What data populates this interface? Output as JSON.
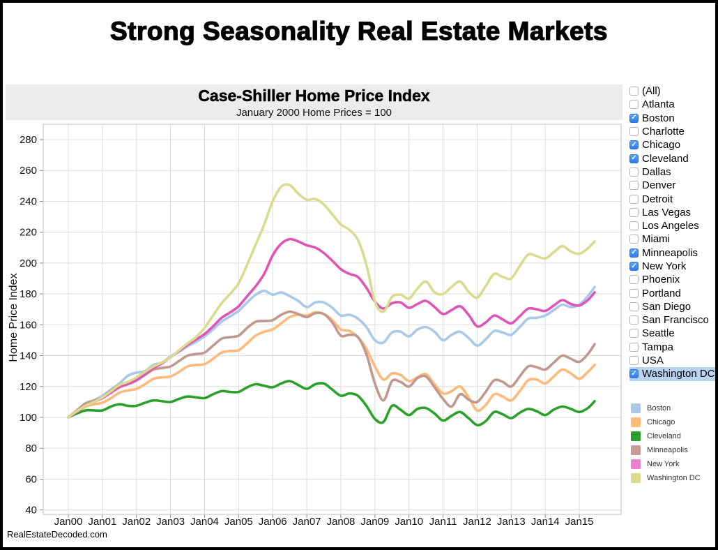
{
  "page": {
    "title": "Strong Seasonality Real Estate Markets",
    "footer": "RealEstateDecoded.com"
  },
  "chart_header": {
    "title": "Case-Shiller Home Price Index",
    "subtitle": "January 2000 Home Prices = 100"
  },
  "filter_list": {
    "items": [
      {
        "label": "(All)",
        "checked": false,
        "highlighted": false
      },
      {
        "label": "Atlanta",
        "checked": false,
        "highlighted": false
      },
      {
        "label": "Boston",
        "checked": true,
        "highlighted": false
      },
      {
        "label": "Charlotte",
        "checked": false,
        "highlighted": false
      },
      {
        "label": "Chicago",
        "checked": true,
        "highlighted": false
      },
      {
        "label": "Cleveland",
        "checked": true,
        "highlighted": false
      },
      {
        "label": "Dallas",
        "checked": false,
        "highlighted": false
      },
      {
        "label": "Denver",
        "checked": false,
        "highlighted": false
      },
      {
        "label": "Detroit",
        "checked": false,
        "highlighted": false
      },
      {
        "label": "Las Vegas",
        "checked": false,
        "highlighted": false
      },
      {
        "label": "Los Angeles",
        "checked": false,
        "highlighted": false
      },
      {
        "label": "Miami",
        "checked": false,
        "highlighted": false
      },
      {
        "label": "Minneapolis",
        "checked": true,
        "highlighted": false
      },
      {
        "label": "New York",
        "checked": true,
        "highlighted": false
      },
      {
        "label": "Phoenix",
        "checked": false,
        "highlighted": false
      },
      {
        "label": "Portland",
        "checked": false,
        "highlighted": false
      },
      {
        "label": "San Diego",
        "checked": false,
        "highlighted": false
      },
      {
        "label": "San Francisco",
        "checked": false,
        "highlighted": false
      },
      {
        "label": "Seattle",
        "checked": false,
        "highlighted": false
      },
      {
        "label": "Tampa",
        "checked": false,
        "highlighted": false
      },
      {
        "label": "USA",
        "checked": false,
        "highlighted": false
      },
      {
        "label": "Washington DC",
        "checked": true,
        "highlighted": true
      }
    ]
  },
  "legend": {
    "entries": [
      {
        "label": "Boston",
        "color": "#aec7e8"
      },
      {
        "label": "Chicago",
        "color": "#ffbb78"
      },
      {
        "label": "Cleveland",
        "color": "#2ca02c"
      },
      {
        "label": "Minneapolis",
        "color": "#c49c94"
      },
      {
        "label": "New York",
        "color": "#e882cf"
      },
      {
        "label": "Washington DC",
        "color": "#dbdb8d"
      }
    ]
  },
  "chart_data": {
    "type": "line",
    "title": "Case-Shiller Home Price Index",
    "subtitle": "January 2000 Home Prices = 100",
    "xlabel": "",
    "ylabel": "Home Price Index",
    "ylim": [
      37,
      290
    ],
    "xlim": [
      1999.25,
      2016.2
    ],
    "grid": true,
    "legend_position": "right",
    "y_ticks": [
      40,
      60,
      80,
      100,
      120,
      140,
      160,
      180,
      200,
      220,
      240,
      260,
      280
    ],
    "x_tick_years": [
      2000,
      2001,
      2002,
      2003,
      2004,
      2005,
      2006,
      2007,
      2008,
      2009,
      2010,
      2011,
      2012,
      2013,
      2014,
      2015
    ],
    "x_tick_labels": [
      "Jan00",
      "Jan01",
      "Jan02",
      "Jan03",
      "Jan04",
      "Jan05",
      "Jan06",
      "Jan07",
      "Jan08",
      "Jan09",
      "Jan10",
      "Jan11",
      "Jan12",
      "Jan13",
      "Jan14",
      "Jan15"
    ],
    "x": [
      2000,
      2000.25,
      2000.5,
      2000.75,
      2001,
      2001.25,
      2001.5,
      2001.75,
      2002,
      2002.25,
      2002.5,
      2002.75,
      2003,
      2003.25,
      2003.5,
      2003.75,
      2004,
      2004.25,
      2004.5,
      2004.75,
      2005,
      2005.25,
      2005.5,
      2005.75,
      2006,
      2006.25,
      2006.5,
      2006.75,
      2007,
      2007.25,
      2007.5,
      2007.75,
      2008,
      2008.25,
      2008.5,
      2008.75,
      2009,
      2009.25,
      2009.5,
      2009.75,
      2010,
      2010.25,
      2010.5,
      2010.75,
      2011,
      2011.25,
      2011.5,
      2011.75,
      2012,
      2012.25,
      2012.5,
      2012.75,
      2013,
      2013.25,
      2013.5,
      2013.75,
      2014,
      2014.25,
      2014.5,
      2014.75,
      2015,
      2015.25,
      2015.45
    ],
    "series": [
      {
        "name": "Boston",
        "color": "#aac8e8",
        "values": [
          100,
          103.5,
          108.5,
          111,
          114,
          118,
          122,
          127,
          129,
          130,
          134,
          135.5,
          139.5,
          142.5,
          146,
          149,
          152.5,
          157,
          162,
          165.5,
          169,
          174.5,
          179.5,
          182,
          179.5,
          181,
          178.5,
          175.5,
          171.5,
          174.5,
          174.5,
          171,
          166,
          166.5,
          164,
          158.5,
          150,
          148.5,
          155,
          155.5,
          152.5,
          157,
          158.5,
          155.5,
          150,
          153.5,
          155.5,
          151.5,
          146.5,
          150.5,
          156,
          155,
          153.5,
          158.5,
          164,
          164.5,
          166,
          169.5,
          173,
          171.5,
          173,
          178.5,
          184.5
        ]
      },
      {
        "name": "Chicago",
        "color": "#ffb978",
        "values": [
          100,
          103.5,
          107,
          108.5,
          109.5,
          112.5,
          116,
          117.5,
          118.5,
          121.5,
          125,
          126,
          126.5,
          129.5,
          133,
          134,
          134.5,
          138,
          142,
          143,
          143.5,
          148,
          153,
          155.5,
          157,
          161,
          165,
          166.5,
          166,
          168,
          167,
          163,
          157,
          156,
          152,
          144.5,
          133,
          124.5,
          128.5,
          127.5,
          123.5,
          126,
          128,
          121.5,
          115.5,
          117,
          120,
          113,
          104.5,
          108,
          115,
          113.5,
          111,
          117,
          124,
          124.5,
          122,
          126.5,
          131,
          128.5,
          125,
          129.5,
          134
        ]
      },
      {
        "name": "Cleveland",
        "color": "#2ba02b",
        "values": [
          100,
          102.5,
          104.5,
          104.5,
          104.5,
          107,
          108.5,
          107.5,
          107.5,
          109.5,
          111,
          110.5,
          110,
          112,
          113.5,
          113,
          112.5,
          115,
          117,
          116.5,
          116.5,
          119.5,
          121.5,
          120.5,
          119.5,
          122,
          123.5,
          121,
          118.5,
          121.5,
          122,
          118,
          114,
          115.5,
          114,
          107.5,
          99,
          97,
          107.5,
          105,
          101.5,
          105.5,
          106,
          102.5,
          98,
          101,
          103.5,
          99.5,
          95,
          97.5,
          103.5,
          102,
          99.5,
          103,
          105.5,
          104,
          101.5,
          105,
          107,
          105.5,
          103.5,
          106,
          110.5
        ]
      },
      {
        "name": "Minneapolis",
        "color": "#c0988e",
        "values": [
          100,
          104.5,
          109,
          111,
          113,
          117.5,
          121,
          122.5,
          124,
          127.5,
          131,
          132,
          133,
          136.5,
          140,
          141,
          142,
          146.5,
          151,
          152,
          153,
          158,
          162,
          162.5,
          163,
          166.5,
          168.5,
          167,
          165,
          167.5,
          167,
          161.5,
          153,
          153.5,
          152,
          141,
          122,
          111,
          123.5,
          123,
          120,
          125.5,
          126.5,
          119.5,
          112,
          107,
          115,
          111.5,
          110,
          116.5,
          124,
          123,
          120,
          126.5,
          133,
          132.5,
          131,
          135.5,
          140,
          138,
          136,
          141,
          147.5
        ]
      },
      {
        "name": "New York",
        "color": "#de55b7",
        "values": [
          100,
          103.5,
          107.5,
          110,
          112.5,
          116,
          119.5,
          121.5,
          124,
          128,
          132,
          135,
          139,
          143,
          147,
          150.5,
          154,
          159,
          164.5,
          168,
          172,
          178.5,
          185,
          193,
          205,
          212.5,
          215.5,
          214,
          211.5,
          210,
          206.5,
          201.5,
          196,
          193,
          191,
          184,
          175,
          170.5,
          174,
          174.5,
          171,
          173.5,
          175.5,
          171.5,
          167,
          169.5,
          172,
          166.5,
          159,
          161.5,
          166,
          163.5,
          161,
          165.5,
          170.5,
          170,
          169,
          172.5,
          176,
          173.5,
          172.5,
          176,
          181
        ]
      },
      {
        "name": "Washington DC",
        "color": "#d9db8e",
        "values": [
          100,
          104,
          107.5,
          110,
          113,
          117,
          121,
          123,
          126,
          129.5,
          133,
          135.5,
          139,
          143.5,
          148,
          152,
          158,
          166,
          174,
          180,
          187,
          199,
          212,
          225,
          240,
          249.5,
          250.5,
          245,
          241,
          241.5,
          238,
          231.5,
          225,
          221.5,
          215,
          199,
          175,
          168.5,
          178,
          179.5,
          177,
          183.5,
          188,
          181,
          180,
          184.5,
          188,
          181.5,
          177.5,
          185,
          193,
          191,
          190,
          198,
          205.5,
          204.5,
          203,
          207,
          211,
          207.5,
          206,
          209.5,
          214
        ]
      }
    ]
  }
}
